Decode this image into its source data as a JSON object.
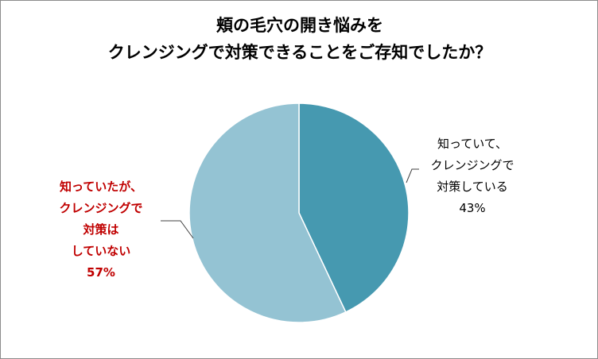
{
  "chart_data": {
    "type": "pie",
    "title_lines": [
      "頬の毛穴の開き悩みを",
      "クレンジングで対策できることをご存知でしたか？"
    ],
    "slices": [
      {
        "label_lines": [
          "知っていて、",
          "クレンジングで",
          "対策している"
        ],
        "value": 43,
        "value_label": "43%",
        "color": "#4699b0",
        "label_color": "#000000"
      },
      {
        "label_lines": [
          "知っていたが、",
          "クレンジングで",
          "対策は",
          "していない"
        ],
        "value": 57,
        "value_label": "57%",
        "color": "#94c3d3",
        "label_color": "#c00000"
      }
    ],
    "start_angle_deg": 0,
    "direction": "clockwise"
  }
}
